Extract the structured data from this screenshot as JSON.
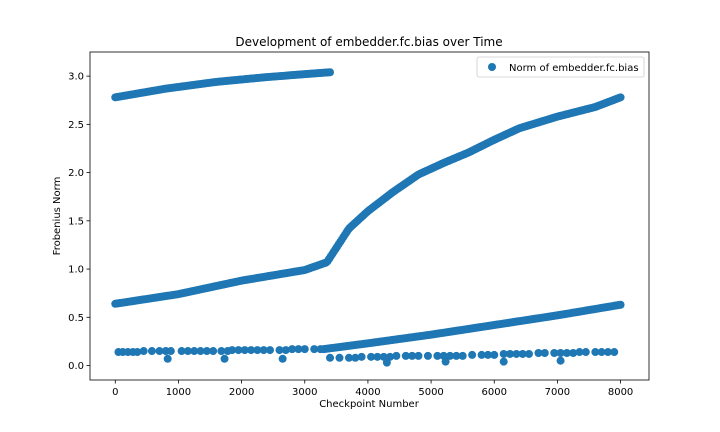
{
  "chart_data": {
    "type": "scatter",
    "title": "Development of embedder.fc.bias over Time",
    "xlabel": "Checkpoint Number",
    "ylabel": "Frobenius Norm",
    "xlim": [
      -400,
      8450
    ],
    "ylim": [
      -0.15,
      3.25
    ],
    "xticks": [
      0,
      1000,
      2000,
      3000,
      4000,
      5000,
      6000,
      7000,
      8000
    ],
    "yticks": [
      0.0,
      0.5,
      1.0,
      1.5,
      2.0,
      2.5,
      3.0
    ],
    "grid": false,
    "legend": {
      "position": "top-right",
      "entries": [
        "Norm of embedder.fc.bias"
      ]
    },
    "series": [
      {
        "name": "Norm of embedder.fc.bias",
        "color": "#1f77b4",
        "groups": [
          {
            "x_start": 0,
            "x_end": 3400,
            "count": 130,
            "curve": [
              [
                0,
                2.78
              ],
              [
                800,
                2.87
              ],
              [
                1600,
                2.94
              ],
              [
                2400,
                2.99
              ],
              [
                3400,
                3.04
              ]
            ]
          },
          {
            "x_start": 0,
            "x_end": 8000,
            "count": 320,
            "curve": [
              [
                0,
                0.64
              ],
              [
                1000,
                0.74
              ],
              [
                2000,
                0.88
              ],
              [
                3000,
                0.99
              ],
              [
                3350,
                1.07
              ],
              [
                3700,
                1.42
              ],
              [
                4000,
                1.6
              ],
              [
                4400,
                1.8
              ],
              [
                4800,
                1.98
              ],
              [
                5200,
                2.1
              ],
              [
                5600,
                2.21
              ],
              [
                6000,
                2.34
              ],
              [
                6400,
                2.46
              ],
              [
                7000,
                2.58
              ],
              [
                7600,
                2.68
              ],
              [
                8000,
                2.78
              ]
            ]
          },
          {
            "x_start": 3300,
            "x_end": 8000,
            "count": 190,
            "curve": [
              [
                3300,
                0.17
              ],
              [
                4000,
                0.23
              ],
              [
                5000,
                0.32
              ],
              [
                6000,
                0.42
              ],
              [
                7000,
                0.52
              ],
              [
                8000,
                0.63
              ]
            ]
          },
          {
            "x": [
              50,
              120,
              200,
              280,
              350,
              450,
              580,
              700,
              800,
              880,
              1050,
              1150,
              1250,
              1350,
              1450,
              1550,
              1680,
              1780,
              1850,
              1950,
              2050,
              2150,
              2250,
              2350,
              2450,
              2600,
              2700,
              2800,
              2900,
              3000,
              3150,
              3250
            ],
            "y": [
              0.14,
              0.14,
              0.14,
              0.14,
              0.14,
              0.15,
              0.15,
              0.15,
              0.15,
              0.15,
              0.15,
              0.15,
              0.15,
              0.15,
              0.15,
              0.15,
              0.15,
              0.15,
              0.16,
              0.16,
              0.16,
              0.16,
              0.16,
              0.16,
              0.16,
              0.16,
              0.16,
              0.17,
              0.17,
              0.17,
              0.17,
              0.17
            ]
          },
          {
            "x": [
              3400,
              3550,
              3700,
              3800,
              3900,
              4050,
              4150,
              4250,
              4350,
              4450,
              4600,
              4700,
              4800,
              4950,
              5100,
              5200,
              5300,
              5400,
              5500,
              5650,
              5800,
              5900,
              6000,
              6150,
              6250,
              6350,
              6450,
              6550,
              6700,
              6800,
              6950,
              7050,
              7150,
              7250,
              7350,
              7450,
              7600,
              7700,
              7800,
              7900
            ],
            "y": [
              0.08,
              0.08,
              0.08,
              0.08,
              0.09,
              0.09,
              0.09,
              0.09,
              0.09,
              0.1,
              0.1,
              0.1,
              0.1,
              0.1,
              0.1,
              0.1,
              0.1,
              0.1,
              0.1,
              0.11,
              0.11,
              0.11,
              0.11,
              0.12,
              0.12,
              0.12,
              0.12,
              0.12,
              0.13,
              0.13,
              0.13,
              0.13,
              0.13,
              0.13,
              0.14,
              0.14,
              0.14,
              0.14,
              0.14,
              0.14
            ]
          },
          {
            "x": [
              830,
              1730,
              2650,
              4300,
              5230,
              6150,
              7050
            ],
            "y": [
              0.07,
              0.07,
              0.07,
              0.03,
              0.04,
              0.04,
              0.05
            ]
          }
        ]
      }
    ]
  }
}
